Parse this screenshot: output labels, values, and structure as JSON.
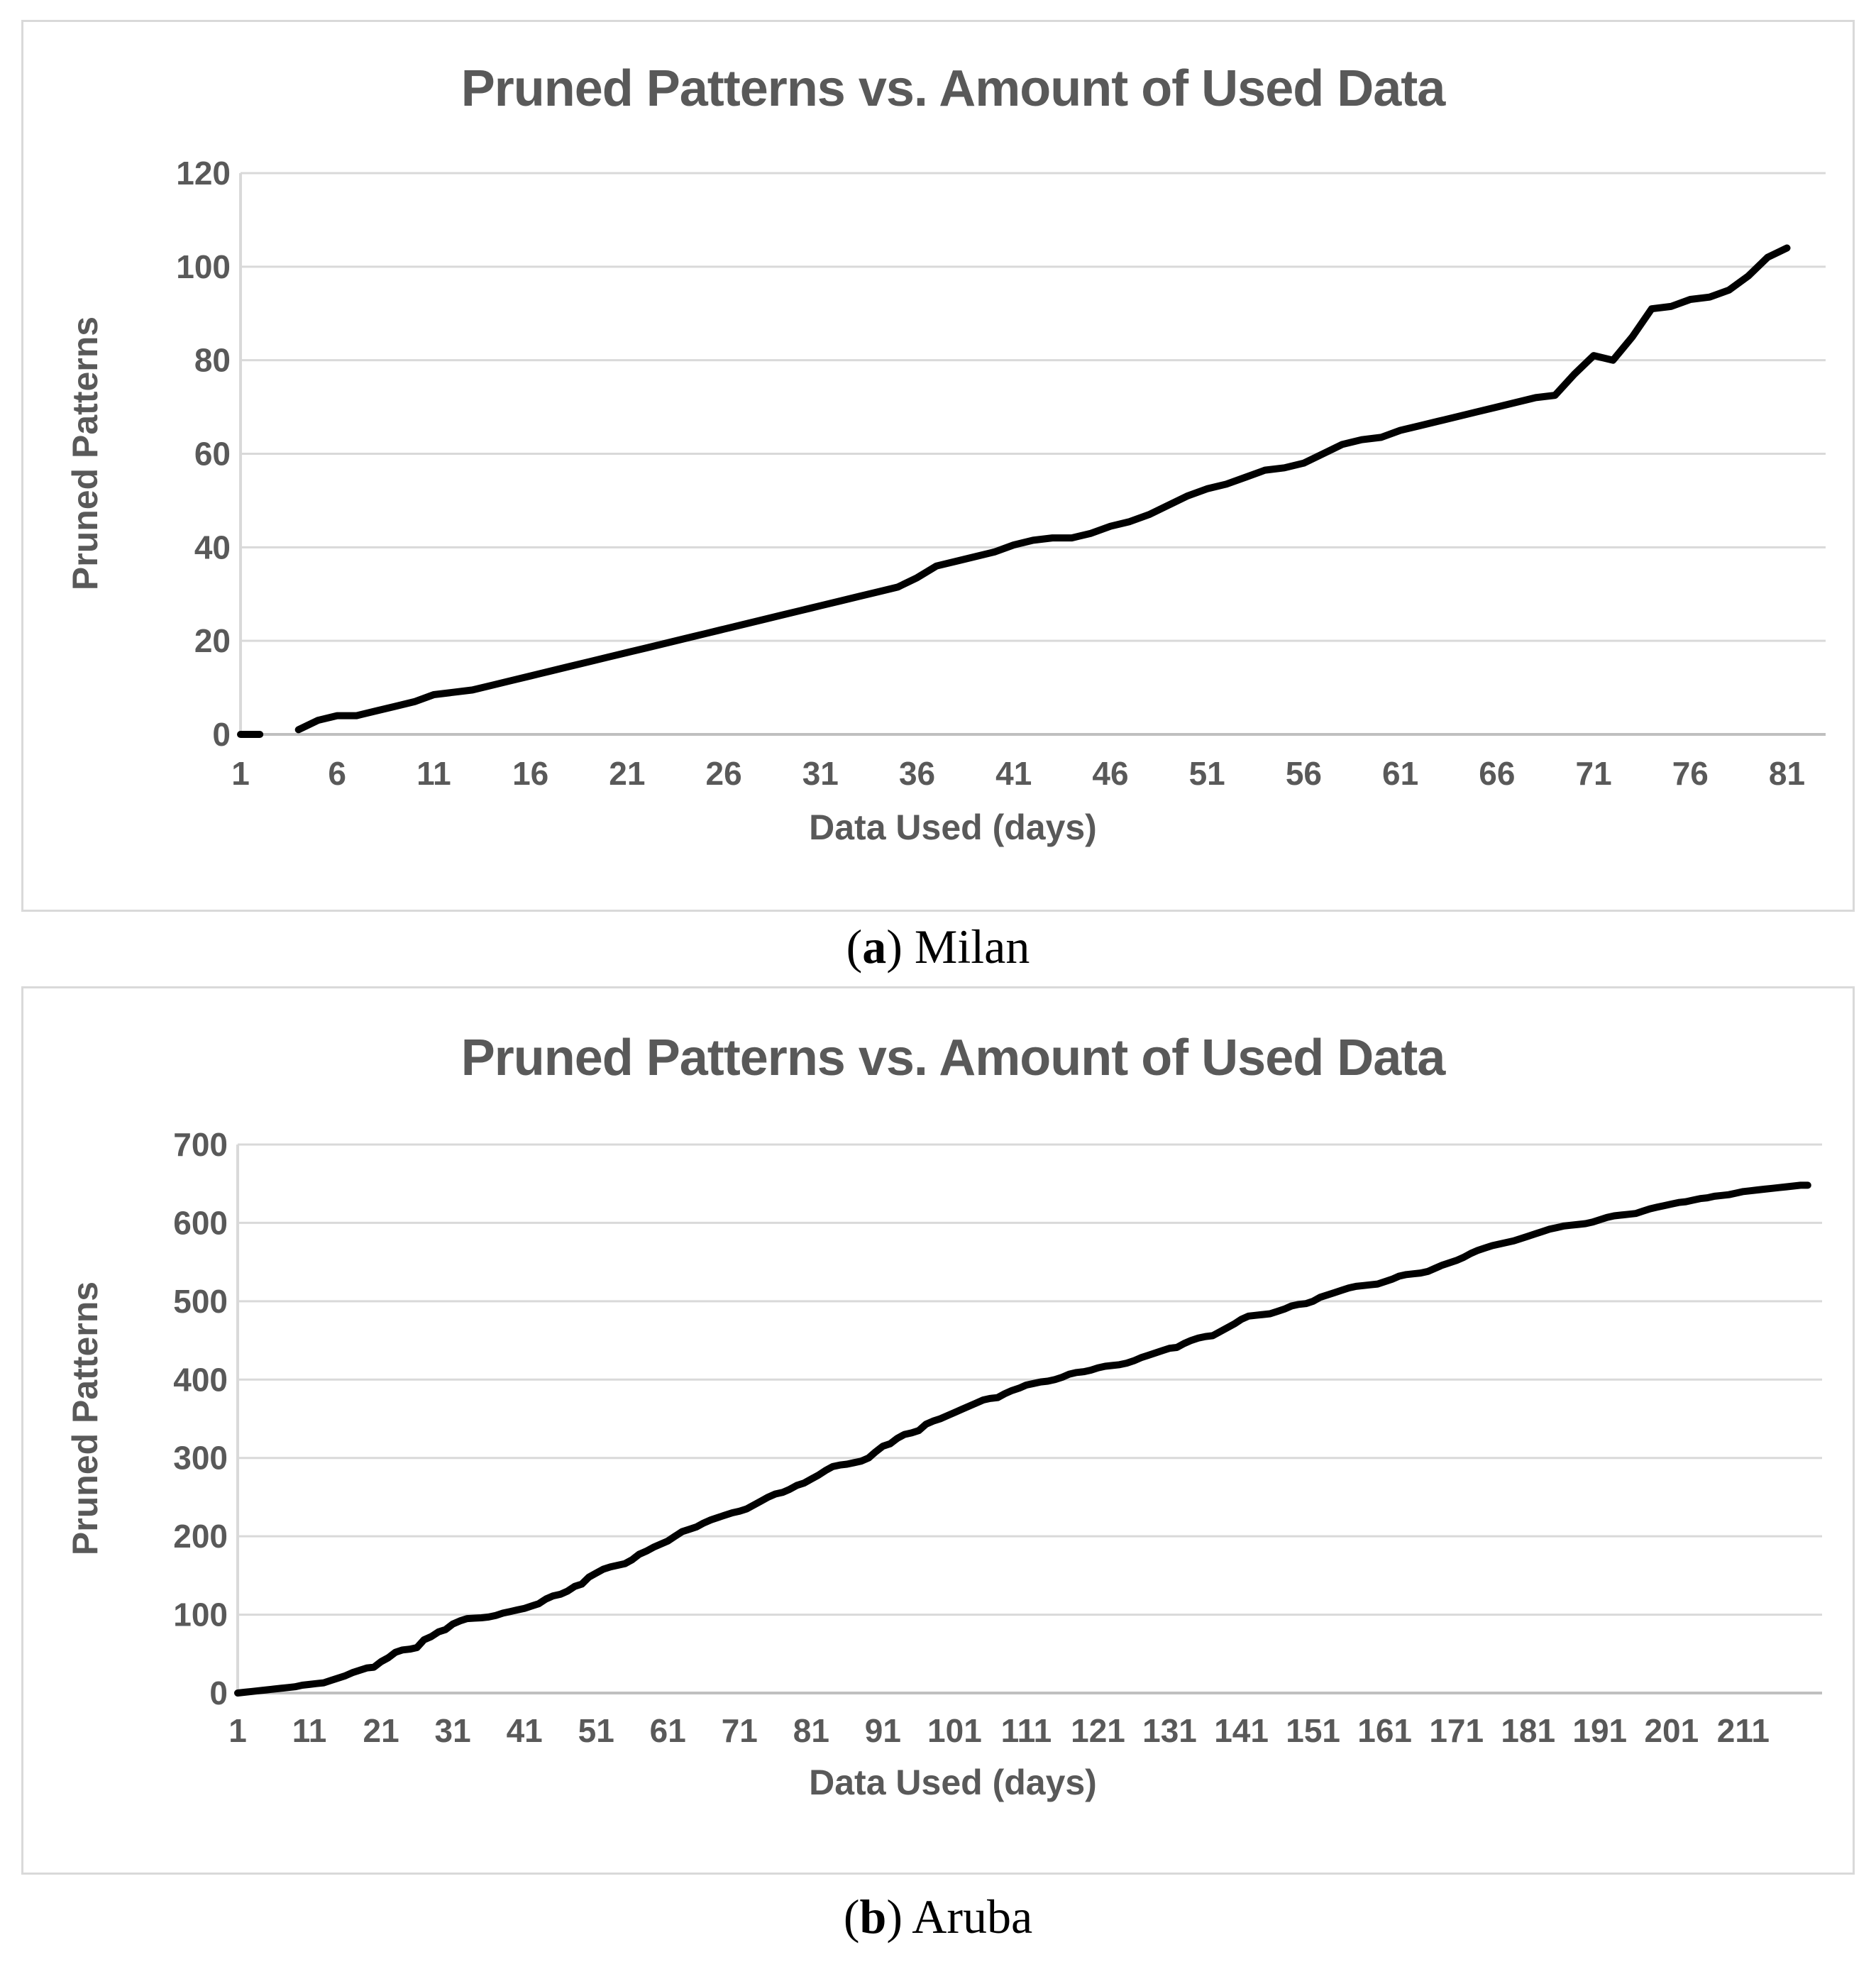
{
  "captions": {
    "a": {
      "pre": "(",
      "bold": "a",
      "post": ") Milan"
    },
    "b": {
      "pre": "(",
      "bold": "b",
      "post": ") Aruba"
    }
  },
  "colors": {
    "series_line": "#000000",
    "gridline": "#d9d9d9",
    "axis_line": "#bfbfbf",
    "chart_text": "#595959"
  },
  "chart_data": [
    {
      "id": "milan",
      "type": "line",
      "title": "Pruned Patterns vs. Amount of Used Data",
      "xlabel": "Data Used (days)",
      "ylabel": "Pruned Patterns",
      "x_ticks": [
        1,
        6,
        11,
        16,
        21,
        26,
        31,
        36,
        41,
        46,
        51,
        56,
        61,
        66,
        71,
        76,
        81
      ],
      "y_ticks": [
        0,
        20,
        40,
        60,
        80,
        100,
        120
      ],
      "ylim": [
        0,
        120
      ],
      "xlim": [
        1,
        83
      ],
      "grid": true,
      "legend": "none",
      "series": [
        {
          "name": "Pruned Patterns",
          "x_start": 1,
          "x_step": 1,
          "values": [
            0,
            0,
            null,
            1,
            3,
            4,
            4,
            5,
            6,
            7,
            8.5,
            9,
            9.5,
            10.5,
            11.5,
            12.5,
            13.5,
            14.5,
            15.5,
            16.5,
            17.5,
            18.5,
            19.5,
            20.5,
            21.5,
            22.5,
            23.5,
            24.5,
            25.5,
            26.5,
            27.5,
            28.5,
            29.5,
            30.5,
            31.5,
            33.5,
            36,
            37,
            38,
            39,
            40.5,
            41.5,
            42,
            42,
            43,
            44.5,
            45.5,
            47,
            49,
            51,
            52.5,
            53.5,
            55,
            56.5,
            57,
            58,
            60,
            62,
            63,
            63.5,
            65,
            66,
            67,
            68,
            69,
            70,
            71,
            72,
            72.5,
            77,
            81,
            80,
            85,
            91,
            91.5,
            93,
            93.5,
            95,
            98,
            102,
            104
          ]
        }
      ]
    },
    {
      "id": "aruba",
      "type": "line",
      "title": "Pruned Patterns vs. Amount of Used Data",
      "xlabel": "Data Used (days)",
      "ylabel": "Pruned Patterns",
      "x_ticks": [
        1,
        11,
        21,
        31,
        41,
        51,
        61,
        71,
        81,
        91,
        101,
        111,
        121,
        131,
        141,
        151,
        161,
        171,
        181,
        191,
        201,
        211
      ],
      "y_ticks": [
        0,
        100,
        200,
        300,
        400,
        500,
        600,
        700
      ],
      "ylim": [
        0,
        700
      ],
      "xlim": [
        1,
        222
      ],
      "grid": true,
      "legend": "none",
      "series": [
        {
          "name": "Pruned Patterns",
          "x_start": 1,
          "x_step": 1,
          "values": [
            0,
            1,
            2,
            3,
            4,
            5,
            6,
            7,
            8,
            10,
            11,
            12,
            13,
            16,
            19,
            22,
            26,
            29,
            32,
            33,
            40,
            45,
            52,
            55,
            56,
            58,
            68,
            72,
            78,
            81,
            88,
            92,
            95,
            95.5,
            96,
            97,
            99,
            102,
            104,
            106,
            108,
            111,
            114,
            120,
            124,
            126,
            130,
            136,
            139,
            148,
            153,
            158,
            161,
            163,
            165,
            170,
            177,
            181,
            186,
            190,
            194,
            200,
            206,
            209,
            212,
            217,
            221,
            224,
            227,
            230,
            232,
            235,
            240,
            245,
            250,
            254,
            256,
            260,
            265,
            268,
            273,
            278,
            284,
            289,
            291,
            292,
            294,
            296,
            300,
            308,
            315,
            318,
            325,
            330,
            332,
            335,
            343,
            347,
            350,
            354,
            358,
            362,
            366,
            370,
            374,
            376,
            377,
            382,
            386,
            389,
            393,
            395,
            397,
            398,
            400,
            403,
            407,
            409,
            410,
            412,
            415,
            417,
            418,
            419,
            421,
            424,
            428,
            431,
            434,
            437,
            440,
            441,
            446,
            450,
            453,
            455,
            456,
            461,
            466,
            471,
            477,
            481,
            482,
            483,
            484,
            487,
            490,
            494,
            496,
            497,
            500,
            505,
            508,
            511,
            514,
            517,
            519,
            520,
            521,
            522,
            525,
            528,
            532,
            534,
            535,
            536,
            538,
            542,
            546,
            549,
            552,
            556,
            561,
            565,
            568,
            571,
            573,
            575,
            577,
            580,
            583,
            586,
            589,
            592,
            594,
            596,
            597,
            598,
            599,
            601,
            604,
            607,
            609,
            610,
            611,
            612,
            615,
            618,
            620,
            622,
            624,
            626,
            627,
            629,
            631,
            632,
            634,
            635,
            636,
            638,
            640,
            641,
            642,
            643,
            644,
            645,
            646,
            647,
            648,
            648
          ]
        }
      ]
    }
  ]
}
